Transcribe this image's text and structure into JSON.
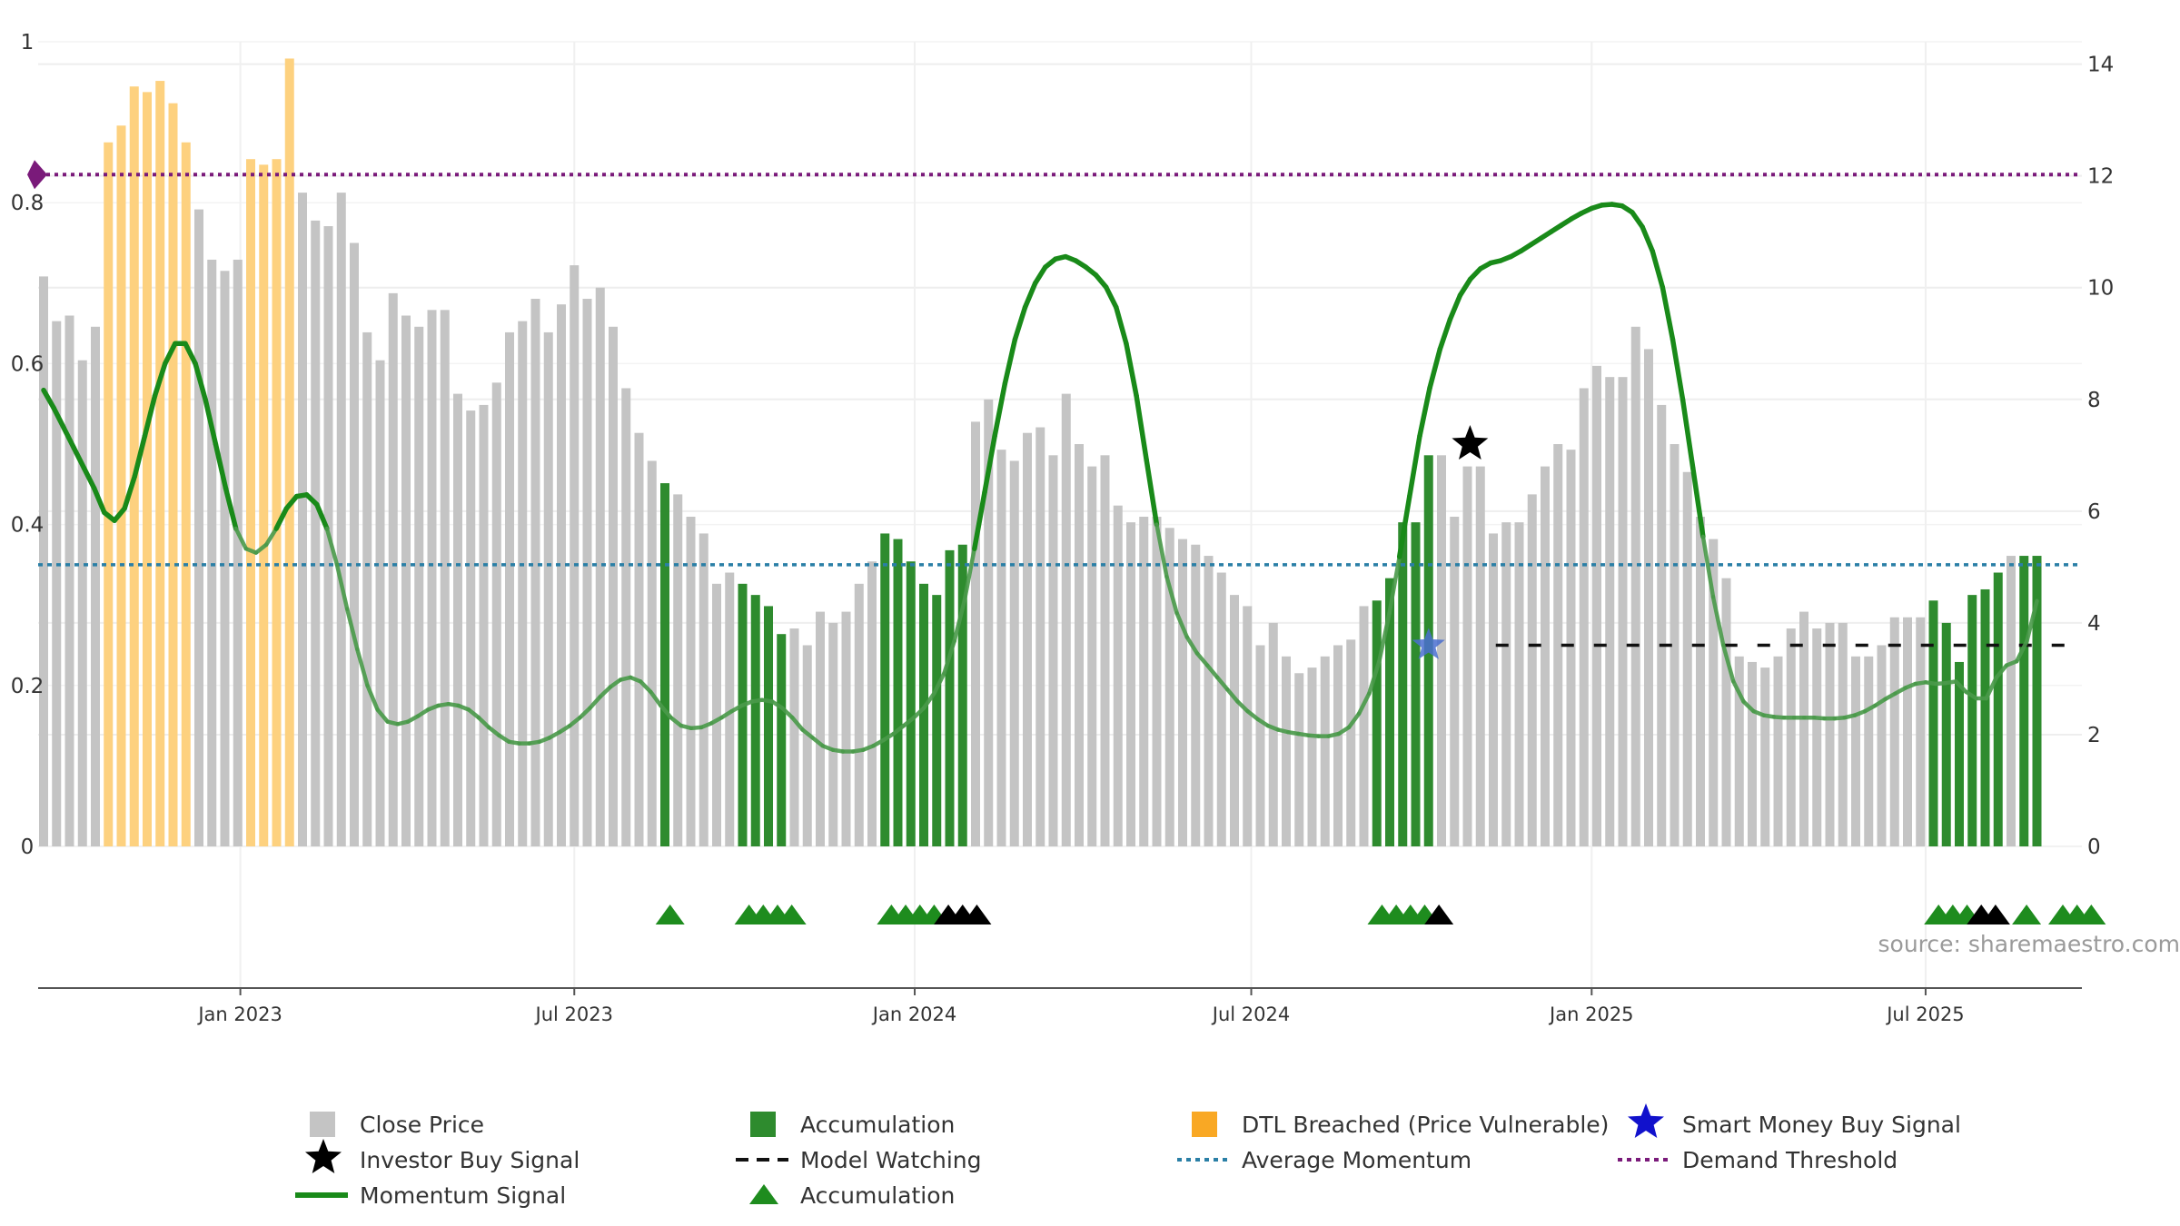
{
  "chart_data": {
    "type": "bar",
    "source": "source: sharemaestro.com",
    "colors": {
      "close": "#c4c4c4",
      "accumulation": "#2e8b2e",
      "dtl": "#fdd17f",
      "momentum": "#198a19",
      "momentum_low": "#4a9a4a",
      "avg_momentum": "#2a7fa6",
      "demand": "#7a1a7a",
      "model_watching": "#111111",
      "tri_green": "#1e8c1e",
      "tri_black": "#000000",
      "smart_money": "#4a6fd0"
    },
    "x_ticks": [
      {
        "label": "Jan 2023",
        "pos": 15.2
      },
      {
        "label": "Jul 2023",
        "pos": 41.0
      },
      {
        "label": "Jan 2024",
        "pos": 67.3
      },
      {
        "label": "Jul 2024",
        "pos": 93.3
      },
      {
        "label": "Jan 2025",
        "pos": 119.6
      },
      {
        "label": "Jul 2025",
        "pos": 145.4
      }
    ],
    "y_left": {
      "ticks": [
        {
          "label": "0",
          "value": 0
        },
        {
          "label": "0.2",
          "value": 0.2
        },
        {
          "label": "0.4",
          "value": 0.4
        },
        {
          "label": "0.6",
          "value": 0.6
        },
        {
          "label": "0.8",
          "value": 0.8
        },
        {
          "label": "1",
          "value": 1
        }
      ],
      "range": [
        0,
        1
      ]
    },
    "y_right": {
      "ticks": [
        {
          "label": "0",
          "value": 0
        },
        {
          "label": "2",
          "value": 2
        },
        {
          "label": "4",
          "value": 4
        },
        {
          "label": "6",
          "value": 6
        },
        {
          "label": "8",
          "value": 8
        },
        {
          "label": "10",
          "value": 10
        },
        {
          "label": "12",
          "value": 12
        },
        {
          "label": "14",
          "value": 14
        }
      ],
      "range": [
        0,
        14.4
      ]
    },
    "close_price": [
      10.2,
      9.4,
      9.5,
      8.7,
      9.3,
      12.6,
      12.9,
      13.6,
      13.5,
      13.7,
      13.3,
      12.6,
      11.4,
      10.5,
      10.3,
      10.5,
      12.3,
      12.2,
      12.3,
      14.1,
      11.7,
      11.2,
      11.1,
      11.7,
      10.8,
      9.2,
      8.7,
      9.9,
      9.5,
      9.3,
      9.6,
      9.6,
      8.1,
      7.8,
      7.9,
      8.3,
      9.2,
      9.4,
      9.8,
      9.2,
      9.7,
      10.4,
      9.8,
      10.0,
      9.3,
      8.2,
      7.4,
      6.9,
      6.5,
      6.3,
      5.9,
      5.6,
      4.7,
      4.9,
      4.7,
      4.5,
      4.3,
      3.8,
      3.9,
      3.6,
      4.2,
      4.0,
      4.2,
      4.7,
      5.1,
      5.6,
      5.5,
      5.1,
      4.7,
      4.5,
      5.3,
      5.4,
      7.6,
      8.0,
      7.1,
      6.9,
      7.4,
      7.5,
      7.0,
      8.1,
      7.2,
      6.8,
      7.0,
      6.1,
      5.8,
      5.9,
      5.9,
      5.7,
      5.5,
      5.4,
      5.2,
      4.9,
      4.5,
      4.3,
      3.6,
      4.0,
      3.4,
      3.1,
      3.2,
      3.4,
      3.6,
      3.7,
      4.3,
      4.4,
      4.8,
      5.8,
      5.8,
      7.0,
      7.0,
      5.9,
      6.8,
      6.8,
      5.6,
      5.8,
      5.8,
      6.3,
      6.8,
      7.2,
      7.1,
      8.2,
      8.6,
      8.4,
      8.4,
      9.3,
      8.9,
      7.9,
      7.2,
      6.7,
      5.9,
      5.5,
      4.8,
      3.4,
      3.3,
      3.2,
      3.4,
      3.9,
      4.2,
      3.9,
      4.0,
      4.0,
      3.4,
      3.4,
      3.6,
      4.1,
      4.1,
      4.1,
      4.4,
      4.0,
      3.3,
      4.5,
      4.6,
      4.9,
      5.2,
      5.2,
      5.2
    ],
    "accumulation_idx": [
      48,
      54,
      55,
      56,
      57,
      65,
      66,
      67,
      68,
      69,
      70,
      71,
      103,
      104,
      105,
      106,
      107,
      146,
      147,
      148,
      149,
      150,
      151,
      153,
      154,
      155,
      156,
      157
    ],
    "dtl_idx": [
      5,
      6,
      7,
      8,
      9,
      10,
      11,
      16,
      17,
      18,
      19
    ],
    "momentum_signal": [
      0.567,
      0.545,
      0.52,
      0.495,
      0.47,
      0.445,
      0.415,
      0.405,
      0.42,
      0.46,
      0.51,
      0.56,
      0.6,
      0.625,
      0.625,
      0.6,
      0.555,
      0.5,
      0.445,
      0.395,
      0.37,
      0.365,
      0.375,
      0.395,
      0.42,
      0.435,
      0.437,
      0.425,
      0.395,
      0.35,
      0.295,
      0.245,
      0.2,
      0.17,
      0.155,
      0.152,
      0.155,
      0.162,
      0.17,
      0.175,
      0.177,
      0.175,
      0.17,
      0.16,
      0.148,
      0.138,
      0.13,
      0.128,
      0.128,
      0.13,
      0.135,
      0.142,
      0.15,
      0.16,
      0.172,
      0.186,
      0.198,
      0.207,
      0.21,
      0.205,
      0.192,
      0.175,
      0.16,
      0.15,
      0.147,
      0.148,
      0.153,
      0.16,
      0.168,
      0.175,
      0.18,
      0.182,
      0.18,
      0.172,
      0.16,
      0.145,
      0.135,
      0.125,
      0.12,
      0.118,
      0.118,
      0.12,
      0.125,
      0.132,
      0.14,
      0.15,
      0.16,
      0.172,
      0.19,
      0.215,
      0.255,
      0.305,
      0.37,
      0.44,
      0.51,
      0.575,
      0.63,
      0.67,
      0.7,
      0.72,
      0.73,
      0.733,
      0.728,
      0.72,
      0.71,
      0.695,
      0.67,
      0.625,
      0.56,
      0.48,
      0.4,
      0.335,
      0.29,
      0.26,
      0.24,
      0.225,
      0.21,
      0.195,
      0.18,
      0.168,
      0.158,
      0.15,
      0.145,
      0.142,
      0.14,
      0.138,
      0.137,
      0.137,
      0.14,
      0.148,
      0.165,
      0.19,
      0.23,
      0.29,
      0.36,
      0.435,
      0.51,
      0.57,
      0.618,
      0.655,
      0.685,
      0.705,
      0.718,
      0.725,
      0.728,
      0.733,
      0.74,
      0.748,
      0.756,
      0.764,
      0.772,
      0.78,
      0.787,
      0.793,
      0.797,
      0.798,
      0.796,
      0.788,
      0.77,
      0.74,
      0.695,
      0.63,
      0.555,
      0.47,
      0.385,
      0.31,
      0.25,
      0.205,
      0.18,
      0.168,
      0.163,
      0.161,
      0.16,
      0.16,
      0.16,
      0.16,
      0.159,
      0.159,
      0.16,
      0.163,
      0.168,
      0.175,
      0.183,
      0.19,
      0.197,
      0.202,
      0.204,
      0.202,
      0.203,
      0.205,
      0.192,
      0.184,
      0.184,
      0.21,
      0.225,
      0.23,
      0.255,
      0.305
    ],
    "demand_threshold": 0.835,
    "avg_momentum": 0.35,
    "model_watching": {
      "value": 0.25,
      "start_index": 115
    },
    "investor_buy_signal": {
      "index": 110.2,
      "value": 0.5
    },
    "smart_money_buy_signal": {
      "index": 107.0,
      "value": 0.25
    },
    "accumulation_triangles": [
      {
        "x": 48.4,
        "color": "green"
      },
      {
        "x": 54.5,
        "color": "green"
      },
      {
        "x": 55.6,
        "color": "green"
      },
      {
        "x": 56.7,
        "color": "green"
      },
      {
        "x": 57.8,
        "color": "green"
      },
      {
        "x": 65.5,
        "color": "green"
      },
      {
        "x": 66.6,
        "color": "green"
      },
      {
        "x": 67.7,
        "color": "green"
      },
      {
        "x": 68.8,
        "color": "green"
      },
      {
        "x": 69.9,
        "color": "black"
      },
      {
        "x": 71.0,
        "color": "black"
      },
      {
        "x": 72.1,
        "color": "black"
      },
      {
        "x": 103.4,
        "color": "green"
      },
      {
        "x": 104.5,
        "color": "green"
      },
      {
        "x": 105.6,
        "color": "green"
      },
      {
        "x": 106.7,
        "color": "green"
      },
      {
        "x": 107.8,
        "color": "black"
      },
      {
        "x": 146.4,
        "color": "green"
      },
      {
        "x": 147.5,
        "color": "green"
      },
      {
        "x": 148.6,
        "color": "green"
      },
      {
        "x": 149.7,
        "color": "black"
      },
      {
        "x": 150.8,
        "color": "black"
      },
      {
        "x": 153.2,
        "color": "green"
      },
      {
        "x": 156.0,
        "color": "green"
      },
      {
        "x": 157.1,
        "color": "green"
      },
      {
        "x": 158.2,
        "color": "green"
      }
    ],
    "legend": {
      "close_price": "Close Price",
      "accumulation_bar": "Accumulation",
      "dtl": "DTL Breached (Price Vulnerable)",
      "smart_money": "Smart Money Buy Signal",
      "investor_buy": "Investor Buy Signal",
      "model_watching": "Model Watching",
      "avg_momentum": "Average Momentum",
      "demand_threshold": "Demand Threshold",
      "momentum_signal": "Momentum Signal",
      "accumulation_marker": "Accumulation"
    }
  }
}
